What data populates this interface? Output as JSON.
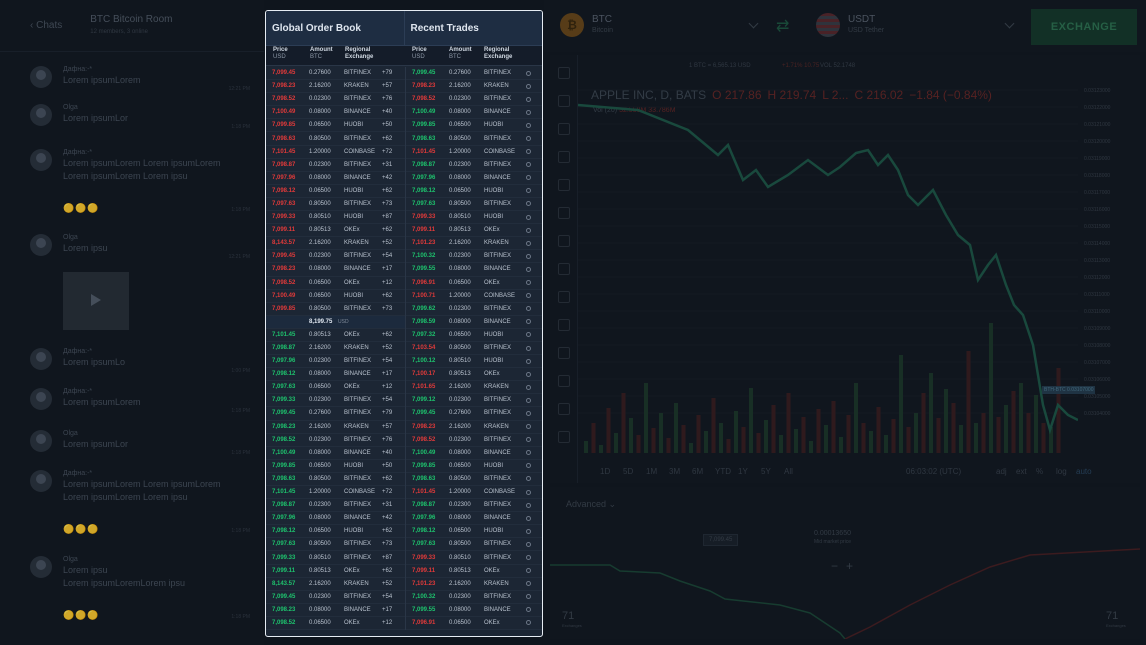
{
  "chat": {
    "back_label": "Chats",
    "room_title": "BTC Bitcoin Room",
    "room_sub": "12 members, 3 online",
    "messages": [
      {
        "name": "Дафна:-*",
        "text": "Lorem ipsumLorem",
        "time": "12:21 PM"
      },
      {
        "name": "Olga",
        "text": "Lorem ipsumLor",
        "time": "1:18 PM"
      },
      {
        "name": "Дафна:-*",
        "text": "Lorem ipsumLorem Lorem ipsumLorem",
        "text2": "Lorem ipsumLorem Lorem ipsu",
        "time": "1:18 PM",
        "emoji": "🟡🟡🟡"
      },
      {
        "name": "Olga",
        "text": "Lorem ipsu",
        "time": "12:21 PM"
      },
      {
        "name": "Дафна:-*",
        "text": "Lorem ipsumLo",
        "time": "1:00 PM"
      },
      {
        "name": "Дафна:-*",
        "text": "Lorem ipsumLorem",
        "time": "1:18 PM"
      },
      {
        "name": "Olga",
        "text": "Lorem ipsumLor",
        "time": "1:18 PM"
      },
      {
        "name": "Дафна:-*",
        "text": "Lorem ipsumLorem Lorem ipsumLorem",
        "text2": "Lorem ipsumLorem Lorem ipsu",
        "time": "1:18 PM",
        "emoji": "🟡🟡🟡"
      },
      {
        "name": "Olga",
        "text": "Lorem ipsu",
        "text2": "Lorem ipsumLoremLorem ipsu",
        "time": "1:18 PM",
        "emoji": "🟡🟡🟡"
      }
    ]
  },
  "top": {
    "base_symbol": "BTC",
    "base_name": "Bitcoin",
    "quote_symbol": "USDT",
    "quote_name": "USD Tether",
    "exchange_button": "EXCHANGE"
  },
  "chart": {
    "ticker_line": "1 BTC = 6,565.13 USD",
    "change_line": "+1.71% 10.75",
    "vol_line": "VOL 52.1748",
    "title": "APPLE INC, D, BATS",
    "o": "O 217.86",
    "h": "H 219.74",
    "l": "L 2...",
    "c": "C 216.02",
    "chg": "−1.84 (−0.84%)",
    "vol_label": "Vol (20)",
    "vol_a": "32.558M",
    "vol_b": "33.786M",
    "price_tag": "BTH-BTC  0.03107000",
    "timeframes": [
      "1D",
      "5D",
      "1M",
      "3M",
      "6M",
      "YTD",
      "1Y",
      "5Y",
      "All"
    ],
    "time_label": "06:03:02 (UTC)",
    "scale_opts": [
      "adj",
      "ext",
      "%",
      "log",
      "auto"
    ],
    "y_ticks": [
      "0.03123000",
      "0.03122000",
      "0.03121000",
      "0.03120000",
      "0.03119000",
      "0.03118000",
      "0.03117000",
      "0.03116000",
      "0.03115000",
      "0.03114000",
      "0.03113000",
      "0.03112000",
      "0.03111000",
      "0.03110000",
      "0.03109000",
      "0.03108000",
      "0.03107000",
      "0.03106000",
      "0.03105000",
      "0.03104000"
    ]
  },
  "depth": {
    "advanced_label": "Advanced",
    "mid_value": "0.00013650",
    "mid_label": "Mid market price",
    "tip": "7,099.45",
    "left_count": "71",
    "left_count_label": "Exchanges",
    "right_count": "71",
    "right_count_label": "Exchanges"
  },
  "orderbook": {
    "title_left": "Global Order Book",
    "title_right": "Recent Trades",
    "headers": {
      "price": "Price",
      "price_unit": "USD",
      "amount": "Amount",
      "amount_unit": "BTC",
      "regional": "Regional",
      "exchange": "Exchange"
    },
    "mid_price": "8,199.75",
    "mid_unit": "USD",
    "asks": [
      [
        "7,099.45",
        "0.27600",
        "BITFINEX",
        "+79"
      ],
      [
        "7,098.23",
        "2.16200",
        "KRAKEN",
        "+57"
      ],
      [
        "7,098.52",
        "0.02300",
        "BITFINEX",
        "+76"
      ],
      [
        "7,100.49",
        "0.08000",
        "BINANCE",
        "+40"
      ],
      [
        "7,099.85",
        "0.06500",
        "HUOBI",
        "+50"
      ],
      [
        "7,098.63",
        "0.80500",
        "BITFINEX",
        "+62"
      ],
      [
        "7,101.45",
        "1.20000",
        "COINBASE",
        "+72"
      ],
      [
        "7,098.87",
        "0.02300",
        "BITFINEX",
        "+31"
      ],
      [
        "7,097.96",
        "0.08000",
        "BINANCE",
        "+42"
      ],
      [
        "7,098.12",
        "0.06500",
        "HUOBI",
        "+62"
      ],
      [
        "7,097.63",
        "0.80500",
        "BITFINEX",
        "+73"
      ],
      [
        "7,099.33",
        "0.80510",
        "HUOBI",
        "+87"
      ],
      [
        "7,099.11",
        "0.80513",
        "OKEx",
        "+62"
      ],
      [
        "8,143.57",
        "2.16200",
        "KRAKEN",
        "+52"
      ],
      [
        "7,099.45",
        "0.02300",
        "BITFINEX",
        "+54"
      ],
      [
        "7,098.23",
        "0.08000",
        "BINANCE",
        "+17"
      ],
      [
        "7,098.52",
        "0.06500",
        "OKEx",
        "+12"
      ],
      [
        "7,100.49",
        "0.06500",
        "HUOBI",
        "+62"
      ],
      [
        "7,099.85",
        "0.80500",
        "BITFINEX",
        "+73"
      ]
    ],
    "bids": [
      [
        "7,101.45",
        "0.80513",
        "OKEx",
        "+62"
      ],
      [
        "7,098.87",
        "2.16200",
        "KRAKEN",
        "+52"
      ],
      [
        "7,097.96",
        "0.02300",
        "BITFINEX",
        "+54"
      ],
      [
        "7,098.12",
        "0.08000",
        "BINANCE",
        "+17"
      ],
      [
        "7,097.63",
        "0.06500",
        "OKEx",
        "+12"
      ],
      [
        "7,099.33",
        "0.02300",
        "BITFINEX",
        "+54"
      ],
      [
        "7,099.45",
        "0.27600",
        "BITFINEX",
        "+79"
      ],
      [
        "7,098.23",
        "2.16200",
        "KRAKEN",
        "+57"
      ],
      [
        "7,098.52",
        "0.02300",
        "BITFINEX",
        "+76"
      ],
      [
        "7,100.49",
        "0.08000",
        "BINANCE",
        "+40"
      ],
      [
        "7,099.85",
        "0.06500",
        "HUOBI",
        "+50"
      ],
      [
        "7,098.63",
        "0.80500",
        "BITFINEX",
        "+62"
      ],
      [
        "7,101.45",
        "1.20000",
        "COINBASE",
        "+72"
      ],
      [
        "7,098.87",
        "0.02300",
        "BITFINEX",
        "+31"
      ],
      [
        "7,097.96",
        "0.08000",
        "BINANCE",
        "+42"
      ],
      [
        "7,098.12",
        "0.06500",
        "HUOBI",
        "+62"
      ],
      [
        "7,097.63",
        "0.80500",
        "BITFINEX",
        "+73"
      ],
      [
        "7,099.33",
        "0.80510",
        "BITFINEX",
        "+87"
      ],
      [
        "7,099.11",
        "0.80513",
        "OKEx",
        "+62"
      ],
      [
        "8,143.57",
        "2.16200",
        "KRAKEN",
        "+52"
      ],
      [
        "7,099.45",
        "0.02300",
        "BITFINEX",
        "+54"
      ],
      [
        "7,098.23",
        "0.08000",
        "BINANCE",
        "+17"
      ],
      [
        "7,098.52",
        "0.06500",
        "OKEx",
        "+12"
      ]
    ],
    "trades": [
      [
        "7,099.45",
        "0.27600",
        "BITFINEX",
        "green"
      ],
      [
        "7,098.23",
        "2.16200",
        "KRAKEN",
        "red"
      ],
      [
        "7,098.52",
        "0.02300",
        "BITFINEX",
        "red"
      ],
      [
        "7,100.49",
        "0.08000",
        "BINANCE",
        "green"
      ],
      [
        "7,099.85",
        "0.06500",
        "HUOBI",
        "green"
      ],
      [
        "7,098.63",
        "0.80500",
        "BITFINEX",
        "green"
      ],
      [
        "7,101.45",
        "1.20000",
        "COINBASE",
        "red"
      ],
      [
        "7,098.87",
        "0.02300",
        "BITFINEX",
        "green"
      ],
      [
        "7,097.96",
        "0.08000",
        "BINANCE",
        "green"
      ],
      [
        "7,098.12",
        "0.06500",
        "HUOBI",
        "green"
      ],
      [
        "7,097.63",
        "0.80500",
        "BITFINEX",
        "green"
      ],
      [
        "7,099.33",
        "0.80510",
        "HUOBI",
        "red"
      ],
      [
        "7,099.11",
        "0.80513",
        "OKEx",
        "red"
      ],
      [
        "7,101.23",
        "2.16200",
        "KRAKEN",
        "red"
      ],
      [
        "7,100.32",
        "0.02300",
        "BITFINEX",
        "green"
      ],
      [
        "7,099.55",
        "0.08000",
        "BINANCE",
        "green"
      ],
      [
        "7,096.91",
        "0.06500",
        "OKEx",
        "red"
      ],
      [
        "7,100.71",
        "1.20000",
        "COINBASE",
        "red"
      ],
      [
        "7,099.62",
        "0.02300",
        "BITFINEX",
        "green"
      ],
      [
        "7,098.59",
        "0.08000",
        "BINANCE",
        "green"
      ],
      [
        "7,097.32",
        "0.06500",
        "HUOBI",
        "green"
      ],
      [
        "7,103.54",
        "0.80500",
        "BITFINEX",
        "red"
      ],
      [
        "7,100.12",
        "0.80510",
        "HUOBI",
        "green"
      ],
      [
        "7,100.17",
        "0.80513",
        "OKEx",
        "red"
      ],
      [
        "7,101.65",
        "2.16200",
        "KRAKEN",
        "red"
      ],
      [
        "7,099.12",
        "0.02300",
        "BITFINEX",
        "green"
      ],
      [
        "7,099.45",
        "0.27600",
        "BITFINEX",
        "green"
      ],
      [
        "7,098.23",
        "2.16200",
        "KRAKEN",
        "red"
      ],
      [
        "7,098.52",
        "0.02300",
        "BITFINEX",
        "red"
      ],
      [
        "7,100.49",
        "0.08000",
        "BINANCE",
        "green"
      ],
      [
        "7,099.85",
        "0.06500",
        "HUOBI",
        "green"
      ],
      [
        "7,098.63",
        "0.80500",
        "BITFINEX",
        "green"
      ],
      [
        "7,101.45",
        "1.20000",
        "COINBASE",
        "red"
      ],
      [
        "7,098.87",
        "0.02300",
        "BITFINEX",
        "green"
      ],
      [
        "7,097.96",
        "0.08000",
        "BINANCE",
        "green"
      ],
      [
        "7,098.12",
        "0.06500",
        "HUOBI",
        "green"
      ],
      [
        "7,097.63",
        "0.80500",
        "BITFINEX",
        "green"
      ],
      [
        "7,099.33",
        "0.80510",
        "BITFINEX",
        "red"
      ],
      [
        "7,099.11",
        "0.80513",
        "OKEx",
        "red"
      ],
      [
        "7,101.23",
        "2.16200",
        "KRAKEN",
        "red"
      ],
      [
        "7,100.32",
        "0.02300",
        "BITFINEX",
        "green"
      ],
      [
        "7,099.55",
        "0.08000",
        "BINANCE",
        "green"
      ],
      [
        "7,096.91",
        "0.06500",
        "OKEx",
        "red"
      ]
    ],
    "colors": {
      "ask": "#e03a3a",
      "bid": "#1ec26d"
    }
  }
}
